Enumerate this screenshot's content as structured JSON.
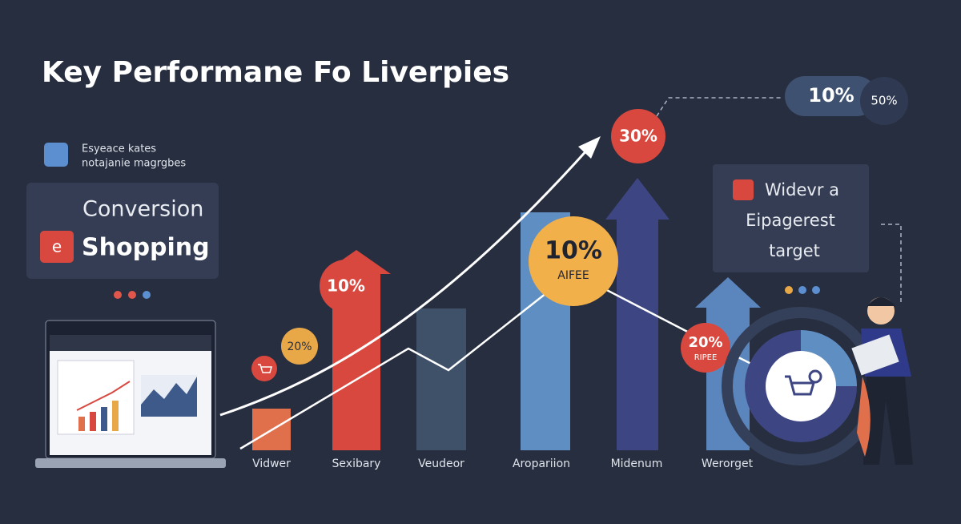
{
  "title": "Key Performane Fo Liverpies",
  "legend": {
    "line1": "Esyeace kates",
    "line2": "notajanie magrgbes"
  },
  "left_card": {
    "heading": "Conversion",
    "label": "Shopping"
  },
  "top_pill": {
    "value": "10%",
    "side": "50%"
  },
  "badges": [
    {
      "text": "30%"
    },
    {
      "text": "10%"
    },
    {
      "text": "20%"
    },
    {
      "text": "10%",
      "sub": "AIFEE"
    },
    {
      "text": "20%",
      "sub": "RIPEE"
    }
  ],
  "right_card": {
    "line1": "Widevr a",
    "line2": "Eipagerest",
    "line3": "target"
  },
  "categories": [
    "Vidwer",
    "Sexibary",
    "Veudeor",
    "Aropariion",
    "Midenum",
    "Werorget"
  ]
}
